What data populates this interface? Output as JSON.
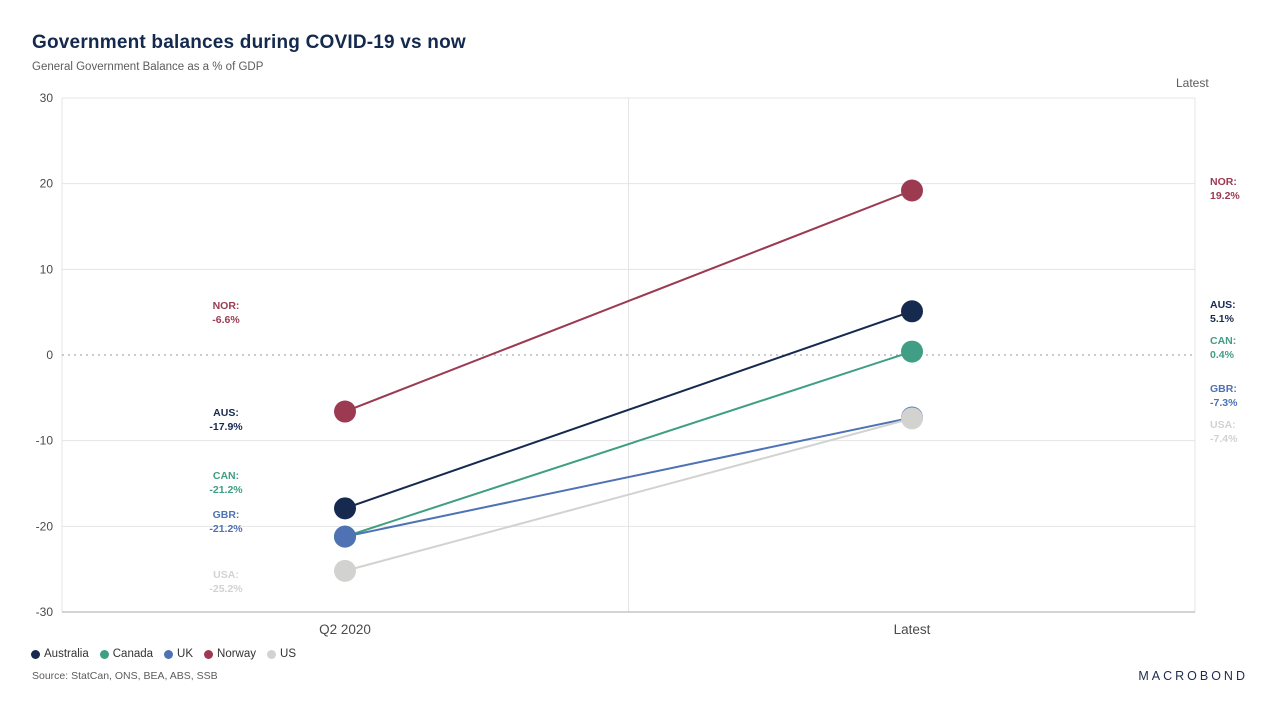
{
  "chart_data": {
    "type": "line",
    "variant": "slope-chart",
    "title": "Government balances during COVID-19 vs now",
    "subtitle": "General Government Balance as a % of GDP",
    "right_column_header": "Latest",
    "categories": [
      "Q2 2020",
      "Latest"
    ],
    "ylim": [
      -30,
      30
    ],
    "yticks": [
      30,
      20,
      10,
      0,
      -10,
      -20,
      -30
    ],
    "grid": "horizontal",
    "legend_position": "bottom",
    "series": [
      {
        "name": "Australia",
        "code": "AUS:",
        "color": "#16294f",
        "values": [
          -17.9,
          5.1
        ],
        "q2_label": "-17.9%",
        "latest_label": "5.1%"
      },
      {
        "name": "Canada",
        "code": "CAN:",
        "color": "#3f9e83",
        "values": [
          -21.2,
          0.4
        ],
        "q2_label": "-21.2%",
        "latest_label": "0.4%"
      },
      {
        "name": "UK",
        "code": "GBR:",
        "color": "#4f72b4",
        "values": [
          -21.2,
          -7.3
        ],
        "q2_label": "-21.2%",
        "latest_label": "-7.3%"
      },
      {
        "name": "Norway",
        "code": "NOR:",
        "color": "#9c3a52",
        "values": [
          -6.6,
          19.2
        ],
        "q2_label": "-6.6%",
        "latest_label": "19.2%"
      },
      {
        "name": "US",
        "code": "USA:",
        "color": "#d2d2d0",
        "values": [
          -25.2,
          -7.4
        ],
        "q2_label": "-25.2%",
        "latest_label": "-7.4%"
      }
    ]
  },
  "legend": {
    "items": [
      {
        "label": "Australia",
        "color": "#16294f"
      },
      {
        "label": "Canada",
        "color": "#3f9e83"
      },
      {
        "label": "UK",
        "color": "#4f72b4"
      },
      {
        "label": "Norway",
        "color": "#9c3a52"
      },
      {
        "label": "US",
        "color": "#d2d2d0"
      }
    ]
  },
  "footer": {
    "source": "Source: StatCan, ONS, BEA, ABS, SSB",
    "brand": "MACROBOND"
  }
}
